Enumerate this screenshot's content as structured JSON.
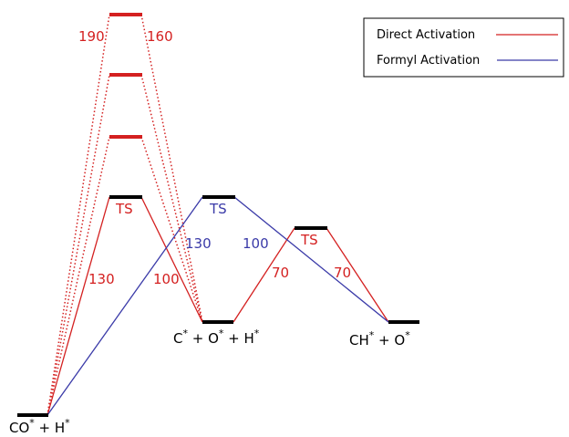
{
  "colors": {
    "direct": "#d42020",
    "formyl": "#3a3aa8",
    "level": "#000000",
    "ts_extra": "#d42020"
  },
  "legend": {
    "direct_label": "Direct Activation",
    "formyl_label": "Formyl Activation"
  },
  "states": {
    "start": {
      "main": "CO",
      "sup1": "*",
      "mid": " + H",
      "sup2": "*"
    },
    "intermediate": {
      "main": "C",
      "sup1": "*",
      "mid": " + O",
      "sup2": "*",
      "mid2": " + H",
      "sup3": "*"
    },
    "final": {
      "main": "CH",
      "sup1": "*",
      "mid": " + O",
      "sup2": "*"
    }
  },
  "ts_labels": {
    "direct_ts1": "TS",
    "formyl_ts": "TS",
    "direct_ts2": "TS"
  },
  "barriers": {
    "high_left": "190",
    "high_right": "160",
    "direct_ts1_left": "130",
    "direct_ts1_right": "100",
    "formyl_left": "130",
    "formyl_right": "100",
    "direct_ts2_left": "70",
    "direct_ts2_right": "70"
  }
}
